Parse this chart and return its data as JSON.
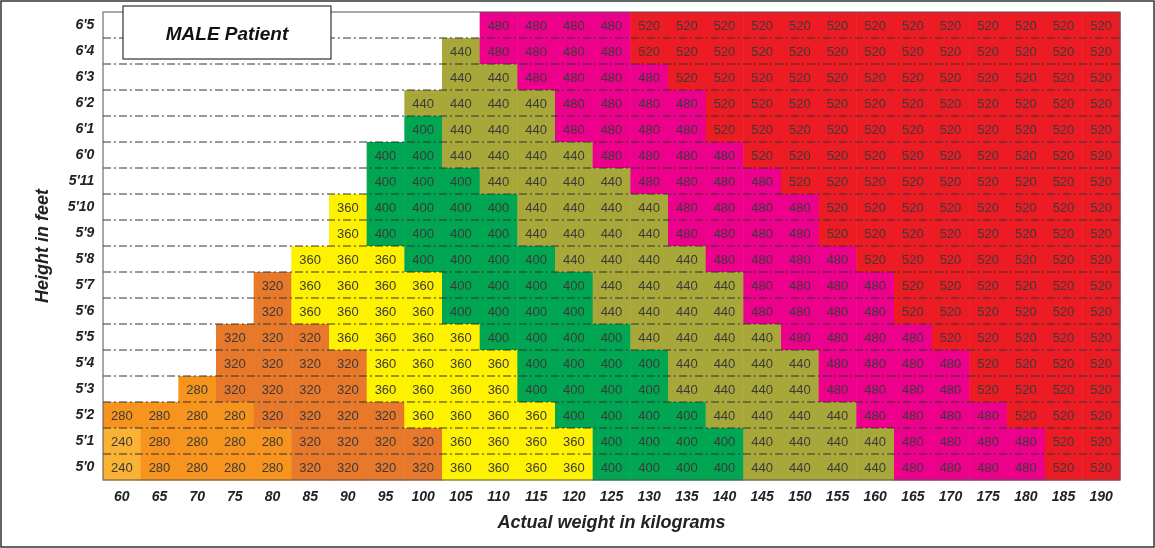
{
  "chart_data": {
    "type": "heatmap",
    "title": "MALE Patient",
    "xlabel": "Actual weight in kilograms",
    "ylabel": "Height in feet",
    "categories": [
      "60",
      "65",
      "70",
      "75",
      "80",
      "85",
      "90",
      "95",
      "100",
      "105",
      "110",
      "115",
      "120",
      "125",
      "130",
      "135",
      "140",
      "145",
      "150",
      "155",
      "160",
      "165",
      "170",
      "175",
      "180",
      "185",
      "190"
    ],
    "y_categories": [
      "6'5",
      "6'4",
      "6'3",
      "6'2",
      "6'1",
      "6'0",
      "5'11",
      "5'10",
      "5'9",
      "5'8",
      "5'7",
      "5'6",
      "5'5",
      "5'4",
      "5'3",
      "5'2",
      "5'1",
      "5'0"
    ],
    "cells": [
      [
        null,
        null,
        null,
        null,
        null,
        null,
        null,
        null,
        null,
        null,
        480,
        480,
        480,
        480,
        520,
        520,
        520,
        520,
        520,
        520,
        520,
        520,
        520,
        520,
        520,
        520,
        520
      ],
      [
        null,
        null,
        null,
        null,
        null,
        null,
        null,
        null,
        null,
        440,
        480,
        480,
        480,
        480,
        520,
        520,
        520,
        520,
        520,
        520,
        520,
        520,
        520,
        520,
        520,
        520,
        520
      ],
      [
        null,
        null,
        null,
        null,
        null,
        null,
        null,
        null,
        null,
        440,
        440,
        480,
        480,
        480,
        480,
        520,
        520,
        520,
        520,
        520,
        520,
        520,
        520,
        520,
        520,
        520,
        520
      ],
      [
        null,
        null,
        null,
        null,
        null,
        null,
        null,
        null,
        440,
        440,
        440,
        440,
        480,
        480,
        480,
        480,
        520,
        520,
        520,
        520,
        520,
        520,
        520,
        520,
        520,
        520,
        520
      ],
      [
        null,
        null,
        null,
        null,
        null,
        null,
        null,
        null,
        400,
        440,
        440,
        440,
        480,
        480,
        480,
        480,
        520,
        520,
        520,
        520,
        520,
        520,
        520,
        520,
        520,
        520,
        520
      ],
      [
        null,
        null,
        null,
        null,
        null,
        null,
        null,
        400,
        400,
        440,
        440,
        440,
        440,
        480,
        480,
        480,
        480,
        520,
        520,
        520,
        520,
        520,
        520,
        520,
        520,
        520,
        520
      ],
      [
        null,
        null,
        null,
        null,
        null,
        null,
        null,
        400,
        400,
        400,
        440,
        440,
        440,
        440,
        480,
        480,
        480,
        480,
        520,
        520,
        520,
        520,
        520,
        520,
        520,
        520,
        520
      ],
      [
        null,
        null,
        null,
        null,
        null,
        null,
        360,
        400,
        400,
        400,
        400,
        440,
        440,
        440,
        440,
        480,
        480,
        480,
        480,
        520,
        520,
        520,
        520,
        520,
        520,
        520,
        520
      ],
      [
        null,
        null,
        null,
        null,
        null,
        null,
        360,
        400,
        400,
        400,
        400,
        440,
        440,
        440,
        440,
        480,
        480,
        480,
        480,
        520,
        520,
        520,
        520,
        520,
        520,
        520,
        520
      ],
      [
        null,
        null,
        null,
        null,
        null,
        360,
        360,
        360,
        400,
        400,
        400,
        400,
        440,
        440,
        440,
        440,
        480,
        480,
        480,
        480,
        520,
        520,
        520,
        520,
        520,
        520,
        520
      ],
      [
        null,
        null,
        null,
        null,
        320,
        360,
        360,
        360,
        360,
        400,
        400,
        400,
        400,
        440,
        440,
        440,
        440,
        480,
        480,
        480,
        480,
        520,
        520,
        520,
        520,
        520,
        520
      ],
      [
        null,
        null,
        null,
        null,
        320,
        360,
        360,
        360,
        360,
        400,
        400,
        400,
        400,
        440,
        440,
        440,
        440,
        480,
        480,
        480,
        480,
        520,
        520,
        520,
        520,
        520,
        520
      ],
      [
        null,
        null,
        null,
        320,
        320,
        320,
        360,
        360,
        360,
        360,
        400,
        400,
        400,
        400,
        440,
        440,
        440,
        440,
        480,
        480,
        480,
        480,
        520,
        520,
        520,
        520,
        520
      ],
      [
        null,
        null,
        null,
        320,
        320,
        320,
        320,
        360,
        360,
        360,
        360,
        400,
        400,
        400,
        400,
        440,
        440,
        440,
        440,
        480,
        480,
        480,
        480,
        520,
        520,
        520,
        520
      ],
      [
        null,
        null,
        280,
        320,
        320,
        320,
        320,
        360,
        360,
        360,
        360,
        400,
        400,
        400,
        400,
        440,
        440,
        440,
        440,
        480,
        480,
        480,
        480,
        520,
        520,
        520,
        520
      ],
      [
        280,
        280,
        280,
        280,
        320,
        320,
        320,
        320,
        360,
        360,
        360,
        360,
        400,
        400,
        400,
        400,
        440,
        440,
        440,
        440,
        480,
        480,
        480,
        480,
        520,
        520,
        520
      ],
      [
        240,
        280,
        280,
        280,
        280,
        320,
        320,
        320,
        320,
        360,
        360,
        360,
        360,
        400,
        400,
        400,
        400,
        440,
        440,
        440,
        440,
        480,
        480,
        480,
        480,
        520,
        520
      ],
      [
        240,
        280,
        280,
        280,
        280,
        320,
        320,
        320,
        320,
        360,
        360,
        360,
        360,
        400,
        400,
        400,
        400,
        440,
        440,
        440,
        440,
        480,
        480,
        480,
        480,
        520,
        520
      ]
    ],
    "colors": [
      "#f9b233",
      "#f7941d",
      "#e8782a",
      "#fff200",
      "#00a651",
      "#a8a83a",
      "#ec008c",
      "#ed1c24"
    ],
    "data_labels": true,
    "grid": "y"
  }
}
